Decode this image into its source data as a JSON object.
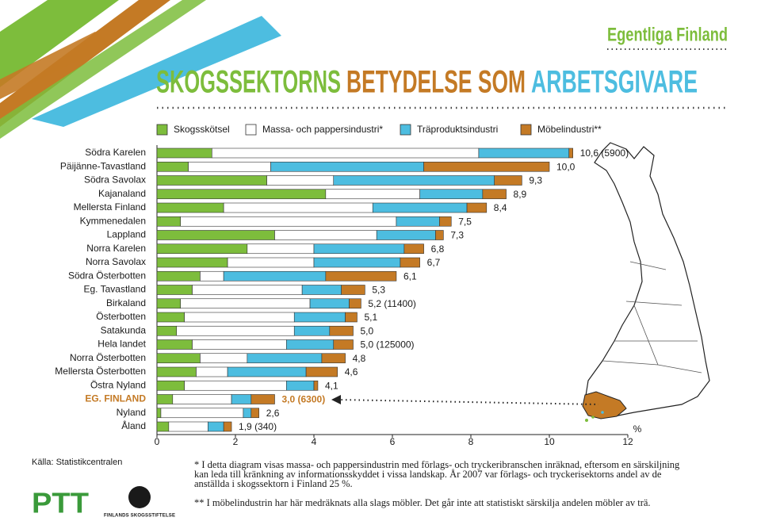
{
  "chart_data": {
    "type": "stacked-barh",
    "region_title": "Egentliga Finland",
    "title_parts": [
      {
        "text": "SKOGSSEKTORNS",
        "color": "#7dbd3c"
      },
      {
        "text": "BETYDELSE SOM",
        "color": "#c47a25"
      },
      {
        "text": "ARBETSGIVARE",
        "color": "#4dbde0"
      }
    ],
    "categories": [
      "Södra Karelen",
      "Päijänne-Tavastland",
      "Södra Savolax",
      "Kajanaland",
      "Mellersta Finland",
      "Kymmenedalen",
      "Lappland",
      "Norra Karelen",
      "Norra Savolax",
      "Södra Österbotten",
      "Eg. Tavastland",
      "Birkaland",
      "Österbotten",
      "Satakunda",
      "Hela landet",
      "Norra Österbotten",
      "Mellersta Österbotten",
      "Östra Nyland",
      "EG. FINLAND",
      "Nyland",
      "Åland"
    ],
    "highlight_index": 18,
    "highlight_color": "#c47a25",
    "series": [
      {
        "name": "Skogsskötsel",
        "color": "#7dbd3c",
        "values": [
          1.4,
          0.8,
          2.8,
          4.3,
          1.7,
          0.6,
          3.0,
          2.3,
          1.8,
          1.1,
          0.9,
          0.6,
          0.7,
          0.5,
          0.9,
          1.1,
          1.0,
          0.7,
          0.4,
          0.1,
          0.3
        ]
      },
      {
        "name": "Massa- och pappersindustri*",
        "color": "#ffffff",
        "values": [
          6.8,
          2.1,
          1.7,
          2.4,
          3.8,
          5.5,
          2.6,
          1.7,
          2.2,
          0.6,
          2.8,
          3.3,
          2.8,
          3.0,
          2.4,
          1.2,
          0.8,
          2.6,
          1.5,
          2.1,
          1.0
        ]
      },
      {
        "name": "Träproduktsindustri",
        "color": "#4dbde0",
        "values": [
          2.3,
          3.9,
          4.1,
          1.6,
          2.4,
          1.1,
          1.5,
          2.3,
          2.2,
          2.6,
          1.0,
          1.0,
          1.3,
          0.9,
          1.2,
          1.9,
          2.0,
          0.7,
          0.5,
          0.2,
          0.4
        ]
      },
      {
        "name": "Möbelindustri**",
        "color": "#c47a25",
        "values": [
          0.1,
          3.2,
          0.7,
          0.6,
          0.5,
          0.3,
          0.2,
          0.5,
          0.5,
          1.8,
          0.6,
          0.3,
          0.3,
          0.6,
          0.5,
          0.6,
          0.8,
          0.1,
          0.6,
          0.2,
          0.2
        ]
      }
    ],
    "value_labels": [
      "10,6 (5900)",
      "10,0",
      "9,3",
      "8,9",
      "8,4",
      "7,5",
      "7,3",
      "6,8",
      "6,7",
      "6,1",
      "5,3",
      "5,2 (11400)",
      "5,1",
      "5,0",
      "5,0 (125000)",
      "4,8",
      "4,6",
      "4,1",
      "3,0 (6300)",
      "2,6",
      "1,9 (340)"
    ],
    "xlim": [
      0,
      12
    ],
    "xticks": [
      0,
      2,
      4,
      6,
      8,
      10,
      12
    ],
    "x_label": "%",
    "source": "Källa: Statistikcentralen",
    "footnotes": [
      "* I detta diagram visas massa- och pappersindustrin med förlags- och tryckeribranschen inräknad, eftersom en särskiljning kan leda till kränkning av informationsskyddet i vissa landskap. År 2007 var förlags- och tryckerisektorns andel av de anställda i skogssektorn i Finland 25 %.",
      "** I möbelindustrin har här medräknats alla slags möbler. Det går inte att statistiskt särskilja andelen möbler av trä."
    ],
    "logos": [
      "PTT",
      "FINLANDS SKOGSSTIFTELSE"
    ]
  }
}
